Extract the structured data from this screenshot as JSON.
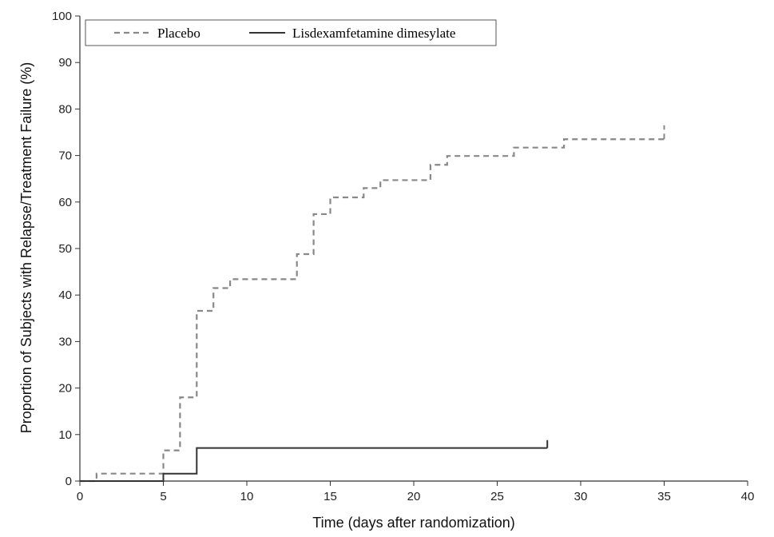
{
  "chart_data": {
    "type": "line",
    "step": true,
    "xlabel": "Time (days after randomization)",
    "ylabel": "Proportion of Subjects with Relapse/Treatment Failure (%)",
    "xlim": [
      0,
      40
    ],
    "ylim": [
      0,
      100
    ],
    "xticks": [
      0,
      5,
      10,
      15,
      20,
      25,
      30,
      35,
      40
    ],
    "yticks": [
      0,
      10,
      20,
      30,
      40,
      50,
      60,
      70,
      80,
      90,
      100
    ],
    "grid": false,
    "legend_position": "top-left",
    "series": [
      {
        "name": "Placebo",
        "style": "dashed",
        "color": "#888888",
        "x": [
          0,
          1,
          5,
          6,
          7,
          8,
          9,
          13,
          14,
          15,
          17,
          18,
          21,
          22,
          26,
          29,
          35
        ],
        "y": [
          0,
          1.6,
          6.6,
          18.0,
          36.6,
          41.5,
          43.4,
          48.8,
          57.4,
          61.0,
          63.0,
          64.7,
          68.0,
          69.9,
          71.7,
          73.5,
          73.5
        ],
        "censor_x": 35,
        "censor_top": 76.5
      },
      {
        "name": "Lisdexamfetamine dimesylate",
        "style": "solid",
        "color": "#333333",
        "x": [
          0,
          5,
          7,
          28
        ],
        "y": [
          0,
          1.6,
          7.1,
          7.1
        ],
        "censor_x": 28,
        "censor_top": 8.8
      }
    ]
  }
}
